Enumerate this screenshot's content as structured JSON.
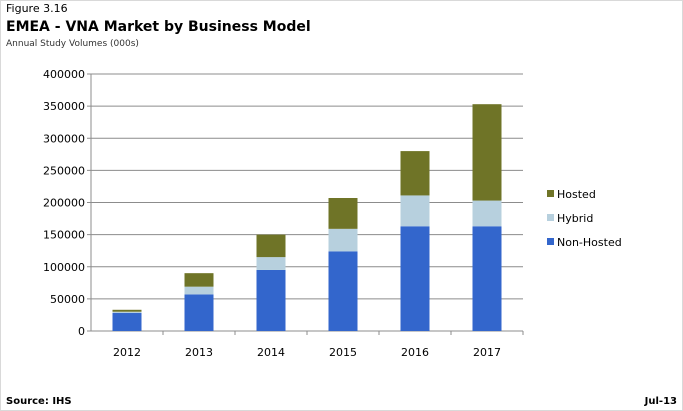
{
  "figure_label": "Figure 3.16",
  "footer": {
    "source": "Source: IHS",
    "date": "Jul-13"
  },
  "chart_data": {
    "type": "bar",
    "stacked": true,
    "title": "EMEA - VNA Market by Business Model",
    "subtitle": "Annual Study Volumes (000s)",
    "categories": [
      "2012",
      "2013",
      "2014",
      "2015",
      "2016",
      "2017"
    ],
    "series": [
      {
        "name": "Non-Hosted",
        "color": "#3366cc",
        "values": [
          28000,
          57000,
          95000,
          124000,
          163000,
          163000
        ]
      },
      {
        "name": "Hybrid",
        "color": "#b7d0de",
        "values": [
          2000,
          12000,
          20000,
          35000,
          48000,
          40000
        ]
      },
      {
        "name": "Hosted",
        "color": "#6f7427",
        "values": [
          3000,
          21000,
          35000,
          48000,
          69000,
          150000
        ]
      }
    ],
    "ylim": [
      0,
      400000
    ],
    "yticks": [
      "0",
      "50000",
      "100000",
      "150000",
      "200000",
      "250000",
      "300000",
      "350000",
      "400000"
    ],
    "grid": true,
    "legend_position": "right",
    "legend_order": [
      "Hosted",
      "Hybrid",
      "Non-Hosted"
    ]
  }
}
